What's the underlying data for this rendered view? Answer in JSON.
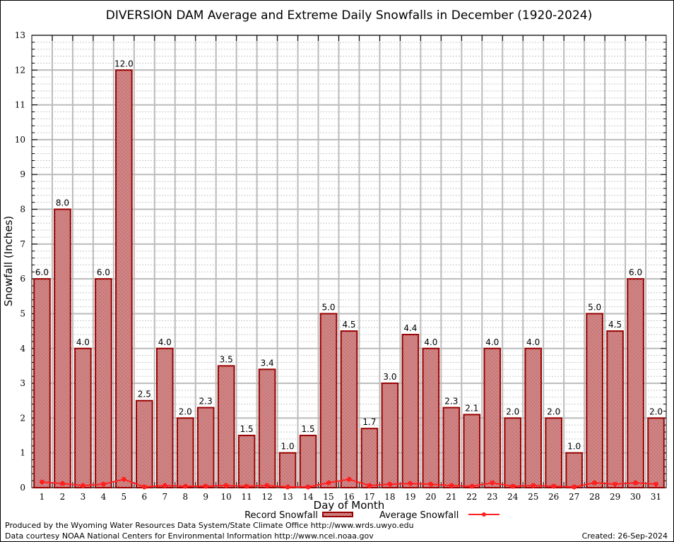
{
  "chart_data": {
    "type": "bar",
    "title": "DIVERSION DAM Average and Extreme Daily Snowfalls in December (1920-2024)",
    "xlabel": "Day of Month",
    "ylabel": "Snowfall (Inches)",
    "ylim": [
      0,
      13
    ],
    "yticks": [
      "0",
      "1",
      "2",
      "3",
      "4",
      "5",
      "6",
      "7",
      "8",
      "9",
      "10",
      "11",
      "12",
      "13"
    ],
    "grid": true,
    "legend_position": "bottom-center",
    "categories": [
      "1",
      "2",
      "3",
      "4",
      "5",
      "6",
      "7",
      "8",
      "9",
      "10",
      "11",
      "12",
      "13",
      "14",
      "15",
      "16",
      "17",
      "18",
      "19",
      "20",
      "21",
      "22",
      "23",
      "24",
      "25",
      "26",
      "27",
      "28",
      "29",
      "30",
      "31"
    ],
    "series": [
      {
        "name": "Record Snowfall",
        "type": "bar",
        "color": "#990000",
        "values": [
          6.0,
          8.0,
          4.0,
          6.0,
          12.0,
          2.5,
          4.0,
          2.0,
          2.3,
          3.5,
          1.5,
          3.4,
          1.0,
          1.5,
          5.0,
          4.5,
          1.7,
          3.0,
          4.4,
          4.0,
          2.3,
          2.1,
          4.0,
          2.0,
          4.0,
          2.0,
          1.0,
          5.0,
          4.5,
          6.0,
          2.0
        ],
        "labels": [
          "6.0",
          "8.0",
          "4.0",
          "6.0",
          "12.0",
          "2.5",
          "4.0",
          "2.0",
          "2.3",
          "3.5",
          "1.5",
          "3.4",
          "1.0",
          "1.5",
          "5.0",
          "4.5",
          "1.7",
          "3.0",
          "4.4",
          "4.0",
          "2.3",
          "2.1",
          "4.0",
          "2.0",
          "4.0",
          "2.0",
          "1.0",
          "5.0",
          "4.5",
          "6.0",
          "2.0"
        ]
      },
      {
        "name": "Average Snowfall",
        "type": "line",
        "color": "#ff2020",
        "values": [
          0.16,
          0.12,
          0.06,
          0.1,
          0.24,
          0.02,
          0.06,
          0.04,
          0.04,
          0.06,
          0.04,
          0.06,
          0.02,
          0.02,
          0.14,
          0.24,
          0.06,
          0.1,
          0.12,
          0.1,
          0.06,
          0.04,
          0.14,
          0.04,
          0.06,
          0.04,
          0.02,
          0.14,
          0.1,
          0.14,
          0.1
        ]
      }
    ]
  },
  "footer": {
    "line1": "Produced by the Wyoming Water Resources Data System/State Climate Office http://www.wrds.uwyo.edu",
    "line2": "Data courtesy NOAA National Centers for Environmental Information http://www.ncei.noaa.gov",
    "created": "Created: 26-Sep-2024"
  }
}
